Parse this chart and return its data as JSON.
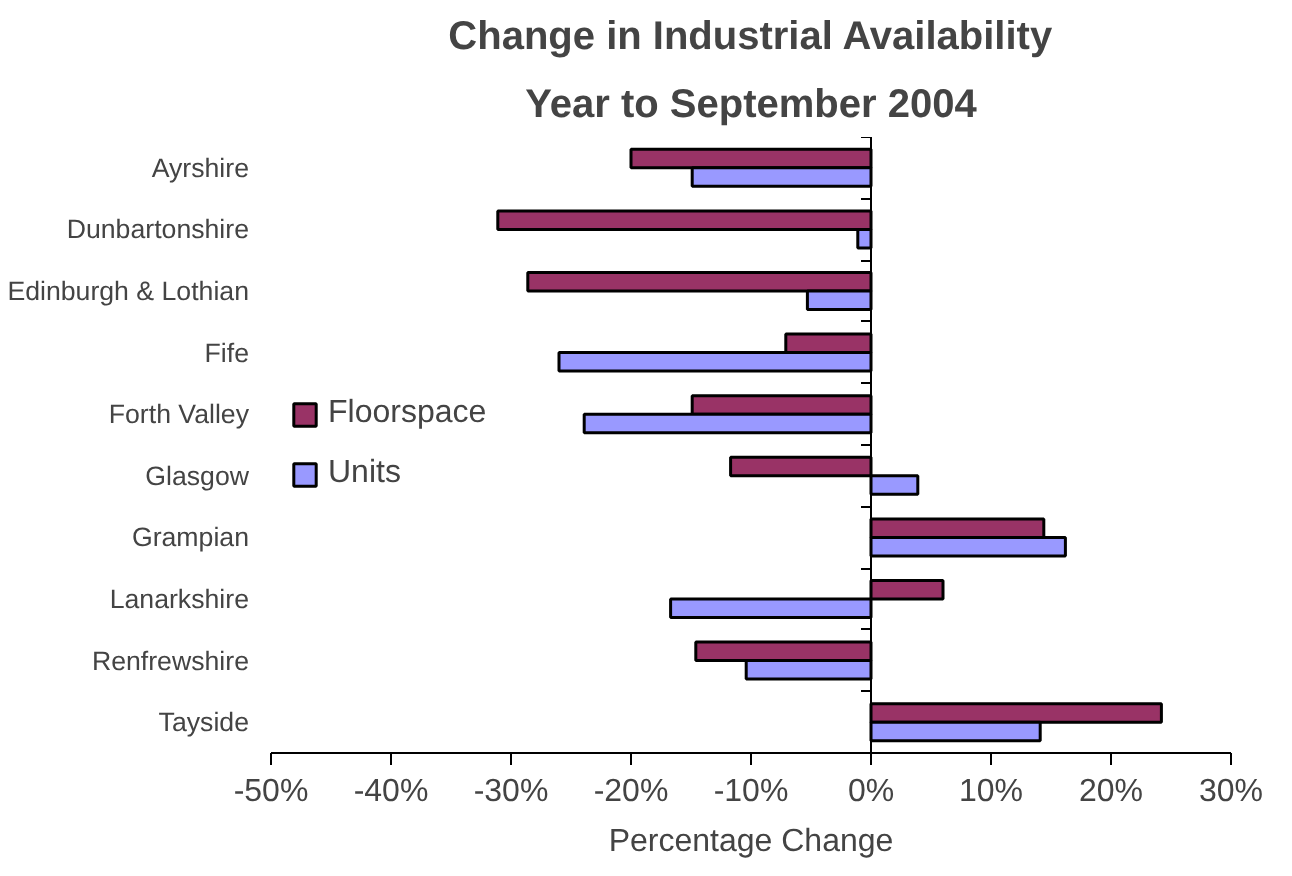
{
  "chart_data": {
    "type": "bar",
    "orientation": "horizontal",
    "title": "Change in Industrial Availability",
    "subtitle": "Year to September 2004",
    "xlabel": "Percentage Change",
    "categories": [
      "Ayrshire",
      "Dunbartonshire",
      "Edinburgh & Lothian",
      "Fife",
      "Forth Valley",
      "Glasgow",
      "Grampian",
      "Lanarkshire",
      "Renfrewshire",
      "Tayside"
    ],
    "series": [
      {
        "name": "Floorspace",
        "color": "#993366",
        "values": [
          -20.0,
          -31.1,
          -28.6,
          -7.1,
          -14.9,
          -11.7,
          14.4,
          6.0,
          -14.6,
          24.2
        ]
      },
      {
        "name": "Units",
        "color": "#9999ff",
        "values": [
          -14.9,
          -1.1,
          -5.3,
          -26.0,
          -23.9,
          3.9,
          16.2,
          -16.7,
          -10.4,
          14.1
        ]
      }
    ],
    "xlim": [
      -50,
      30
    ],
    "xticks": [
      {
        "value": -50,
        "label": "-50%"
      },
      {
        "value": -40,
        "label": "-40%"
      },
      {
        "value": -30,
        "label": "-30%"
      },
      {
        "value": -20,
        "label": "-20%"
      },
      {
        "value": -10,
        "label": "-10%"
      },
      {
        "value": 0,
        "label": "0%"
      },
      {
        "value": 10,
        "label": "10%"
      },
      {
        "value": 20,
        "label": "20%"
      },
      {
        "value": 30,
        "label": "30%"
      }
    ],
    "legend": "left"
  }
}
